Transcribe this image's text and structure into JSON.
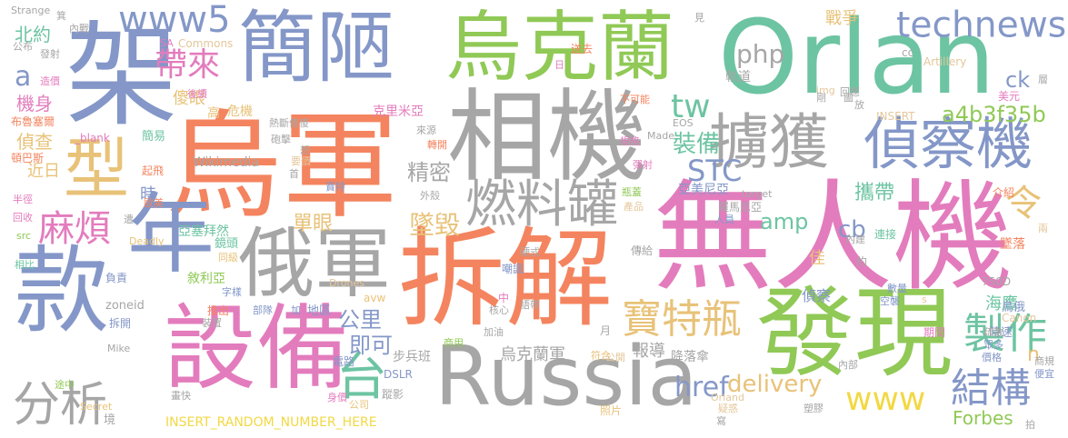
{
  "palette": {
    "salmon": "#f4845f",
    "green": "#90c956",
    "blue": "#8497c8",
    "pink": "#e37cbd",
    "gray": "#a6a6a6",
    "tan": "#e8c278",
    "teal": "#6dc4a2",
    "yellow": "#f2d843",
    "beige": "#e5c79b"
  },
  "words": [
    {
      "text": "無人機",
      "color": "pink"
    },
    {
      "text": "Orlan",
      "color": "teal"
    },
    {
      "text": "烏軍",
      "color": "salmon"
    },
    {
      "text": "拆解",
      "color": "salmon"
    },
    {
      "text": "相機",
      "color": "gray"
    },
    {
      "text": "烏克蘭",
      "color": "green"
    },
    {
      "text": "簡陋",
      "color": "blue"
    },
    {
      "text": "架",
      "color": "blue"
    },
    {
      "text": "款",
      "color": "blue"
    },
    {
      "text": "年",
      "color": "blue"
    },
    {
      "text": "設備",
      "color": "pink"
    },
    {
      "text": "發現",
      "color": "green"
    },
    {
      "text": "Russia",
      "color": "gray"
    },
    {
      "text": "俄軍",
      "color": "gray"
    },
    {
      "text": "擄獲",
      "color": "gray"
    },
    {
      "text": "偵察機",
      "color": "blue"
    },
    {
      "text": "型",
      "color": "tan"
    },
    {
      "text": "燃料罐",
      "color": "gray"
    },
    {
      "text": "分析",
      "color": "gray"
    },
    {
      "text": "technews",
      "color": "blue"
    },
    {
      "text": "寶特瓶",
      "color": "tan"
    },
    {
      "text": "製作",
      "color": "teal"
    },
    {
      "text": "結構",
      "color": "blue"
    },
    {
      "text": "台",
      "color": "teal"
    },
    {
      "text": "www5",
      "color": "blue"
    },
    {
      "text": "麻煩",
      "color": "pink"
    },
    {
      "text": "帶來",
      "color": "pink"
    },
    {
      "text": "php",
      "color": "gray"
    },
    {
      "text": "tw",
      "color": "teal"
    },
    {
      "text": "令",
      "color": "tan"
    },
    {
      "text": "www",
      "color": "yellow"
    },
    {
      "text": "STC",
      "color": "blue"
    },
    {
      "text": "href",
      "color": "blue"
    },
    {
      "text": "delivery",
      "color": "tan"
    },
    {
      "text": "Forbes",
      "color": "green"
    },
    {
      "text": "a4b3f35b",
      "color": "green"
    },
    {
      "text": "裝備",
      "color": "teal"
    },
    {
      "text": "墜毀",
      "color": "tan"
    },
    {
      "text": "精密",
      "color": "gray"
    },
    {
      "text": "攜帶",
      "color": "teal"
    },
    {
      "text": "即可",
      "color": "blue"
    },
    {
      "text": "公里",
      "color": "blue"
    },
    {
      "text": "單眼",
      "color": "tan"
    },
    {
      "text": "amp",
      "color": "teal"
    },
    {
      "text": "cb",
      "color": "blue"
    },
    {
      "text": "a",
      "color": "blue"
    },
    {
      "text": "北約",
      "color": "teal"
    },
    {
      "text": "機身",
      "color": "pink"
    },
    {
      "text": "偵查",
      "color": "tan"
    },
    {
      "text": "近日",
      "color": "tan"
    },
    {
      "text": "時",
      "color": "blue"
    },
    {
      "text": "傻眼",
      "color": "tan"
    },
    {
      "text": "戰爭",
      "color": "tan"
    },
    {
      "text": "烏克蘭軍",
      "color": "gray"
    },
    {
      "text": "報導",
      "color": "gray"
    },
    {
      "text": "ck",
      "color": "blue"
    },
    {
      "text": "n",
      "color": "tan"
    },
    {
      "text": "軌道",
      "color": "gray"
    },
    {
      "text": "Wikimedia",
      "color": "gray"
    },
    {
      "text": "克里米亞",
      "color": "pink"
    },
    {
      "text": "亞美尼亞",
      "color": "blue"
    },
    {
      "text": "羅馬尼亞",
      "color": "gray"
    },
    {
      "text": "亞塞拜然",
      "color": "teal"
    },
    {
      "text": "敘利亞",
      "color": "green"
    },
    {
      "text": "布魯塞爾",
      "color": "salmon"
    },
    {
      "text": "頓巴斯",
      "color": "salmon"
    },
    {
      "text": "海鷹",
      "color": "teal"
    },
    {
      "text": "偵察",
      "color": "blue"
    },
    {
      "text": "佳",
      "color": "tan"
    },
    {
      "text": "750D",
      "color": "gray"
    },
    {
      "text": "_blank",
      "color": "pink"
    },
    {
      "text": "INSERT_RANDOM_NUMBER_HERE",
      "color": "yellow"
    },
    {
      "text": "INSERT",
      "color": "beige"
    },
    {
      "text": "DSLR",
      "color": "blue"
    },
    {
      "text": "Made",
      "color": "gray"
    },
    {
      "text": "EOS",
      "color": "gray"
    },
    {
      "text": "Canon",
      "color": "beige"
    },
    {
      "text": "Artillery",
      "color": "beige"
    },
    {
      "text": "Commons",
      "color": "beige"
    },
    {
      "text": "Strange",
      "color": "gray"
    },
    {
      "text": "SA",
      "color": "pink"
    },
    {
      "text": "img",
      "color": "beige"
    },
    {
      "text": "cc",
      "color": "gray"
    },
    {
      "text": "zoneid",
      "color": "gray"
    },
    {
      "text": "avw",
      "color": "tan"
    },
    {
      "text": "Mike",
      "color": "gray"
    },
    {
      "text": "Secret",
      "color": "tan"
    },
    {
      "text": "Drones",
      "color": "beige"
    },
    {
      "text": "Deadly",
      "color": "tan"
    },
    {
      "text": "src",
      "color": "green"
    },
    {
      "text": "target",
      "color": "gray"
    },
    {
      "text": "Orland",
      "color": "beige"
    },
    {
      "text": "s",
      "color": "beige"
    },
    {
      "text": "步兵班",
      "color": "gray"
    },
    {
      "text": "降落傘",
      "color": "gray"
    },
    {
      "text": "蹤影",
      "color": "gray"
    },
    {
      "text": "照片",
      "color": "tan"
    },
    {
      "text": "公開",
      "color": "beige"
    },
    {
      "text": "內部",
      "color": "gray"
    },
    {
      "text": "推出",
      "color": "salmon"
    },
    {
      "text": "拆開",
      "color": "blue"
    },
    {
      "text": "部隊",
      "color": "blue"
    },
    {
      "text": "地區",
      "color": "blue"
    },
    {
      "text": "電路",
      "color": "blue"
    },
    {
      "text": "商用",
      "color": "green"
    },
    {
      "text": "加油",
      "color": "gray"
    },
    {
      "text": "嘲諷",
      "color": "blue"
    },
    {
      "text": "傳給",
      "color": "gray"
    },
    {
      "text": "內建",
      "color": "gray"
    },
    {
      "text": "連接",
      "color": "teal"
    },
    {
      "text": "墜落",
      "color": "salmon"
    },
    {
      "text": "約",
      "color": "gray"
    },
    {
      "text": "時速",
      "color": "blue"
    },
    {
      "text": "鳥俄",
      "color": "blue"
    },
    {
      "text": "期間",
      "color": "pink"
    },
    {
      "text": "語帶",
      "color": "gray"
    },
    {
      "text": "人員",
      "color": "blue"
    },
    {
      "text": "硬式",
      "color": "gray"
    },
    {
      "text": "鏡頭",
      "color": "teal"
    },
    {
      "text": "同級",
      "color": "tan"
    },
    {
      "text": "遭",
      "color": "gray"
    },
    {
      "text": "首",
      "color": "gray"
    },
    {
      "text": "寶特",
      "color": "blue"
    },
    {
      "text": "要價",
      "color": "beige"
    },
    {
      "text": "起飛",
      "color": "salmon"
    },
    {
      "text": "歐美",
      "color": "salmon"
    },
    {
      "text": "簡易",
      "color": "teal"
    },
    {
      "text": "高",
      "color": "tan"
    },
    {
      "text": "危機",
      "color": "tan"
    },
    {
      "text": "熱斷傻傻",
      "color": "gray"
    },
    {
      "text": "砲擊",
      "color": "gray"
    },
    {
      "text": "想",
      "color": "gray"
    },
    {
      "text": "來源",
      "color": "gray"
    },
    {
      "text": "轉開",
      "color": "salmon"
    },
    {
      "text": "規格",
      "color": "pink"
    },
    {
      "text": "瓶蓋",
      "color": "green"
    },
    {
      "text": "產品",
      "color": "beige"
    },
    {
      "text": "外殼",
      "color": "gray"
    },
    {
      "text": "介紹",
      "color": "salmon"
    },
    {
      "text": "彈射",
      "color": "pink"
    },
    {
      "text": "剛",
      "color": "gray"
    },
    {
      "text": "回應",
      "color": "gray"
    },
    {
      "text": "放",
      "color": "gray"
    },
    {
      "text": "美元",
      "color": "pink"
    },
    {
      "text": "不可能",
      "color": "salmon"
    },
    {
      "text": "日",
      "color": "pink"
    },
    {
      "text": "送去",
      "color": "salmon"
    },
    {
      "text": "見",
      "color": "gray"
    },
    {
      "text": "公布",
      "color": "gray"
    },
    {
      "text": "發射",
      "color": "gray"
    },
    {
      "text": "造價",
      "color": "pink"
    },
    {
      "text": "半徑",
      "color": "pink"
    },
    {
      "text": "回收",
      "color": "pink"
    },
    {
      "text": "相比",
      "color": "teal"
    },
    {
      "text": "後續",
      "color": "pink"
    },
    {
      "text": "箕",
      "color": "gray"
    },
    {
      "text": "內戰",
      "color": "gray"
    },
    {
      "text": "負責",
      "color": "blue"
    },
    {
      "text": "字樣",
      "color": "blue"
    },
    {
      "text": "裝置",
      "color": "gray"
    },
    {
      "text": "加",
      "color": "blue"
    },
    {
      "text": "身價",
      "color": "pink"
    },
    {
      "text": "公司",
      "color": "tan"
    },
    {
      "text": "畫快",
      "color": "gray"
    },
    {
      "text": "途中",
      "color": "green"
    },
    {
      "text": "境",
      "color": "gray"
    },
    {
      "text": "中",
      "color": "pink"
    },
    {
      "text": "核心",
      "color": "gray"
    },
    {
      "text": "月",
      "color": "gray"
    },
    {
      "text": "符合",
      "color": "tan"
    },
    {
      "text": "疑惑",
      "color": "beige"
    },
    {
      "text": "塑膠",
      "color": "gray"
    },
    {
      "text": "寫",
      "color": "gray"
    },
    {
      "text": "價格",
      "color": "blue"
    },
    {
      "text": "眾多",
      "color": "blue"
    },
    {
      "text": "疏散",
      "color": "gray"
    },
    {
      "text": "空襲",
      "color": "blue"
    },
    {
      "text": "數量",
      "color": "blue"
    },
    {
      "text": "商規",
      "color": "gray"
    },
    {
      "text": "便宜",
      "color": "blue"
    },
    {
      "text": "拍",
      "color": "gray"
    },
    {
      "text": "兩",
      "color": "beige"
    },
    {
      "text": "層",
      "color": "gray"
    },
    {
      "text": "圖",
      "color": "gray"
    }
  ]
}
